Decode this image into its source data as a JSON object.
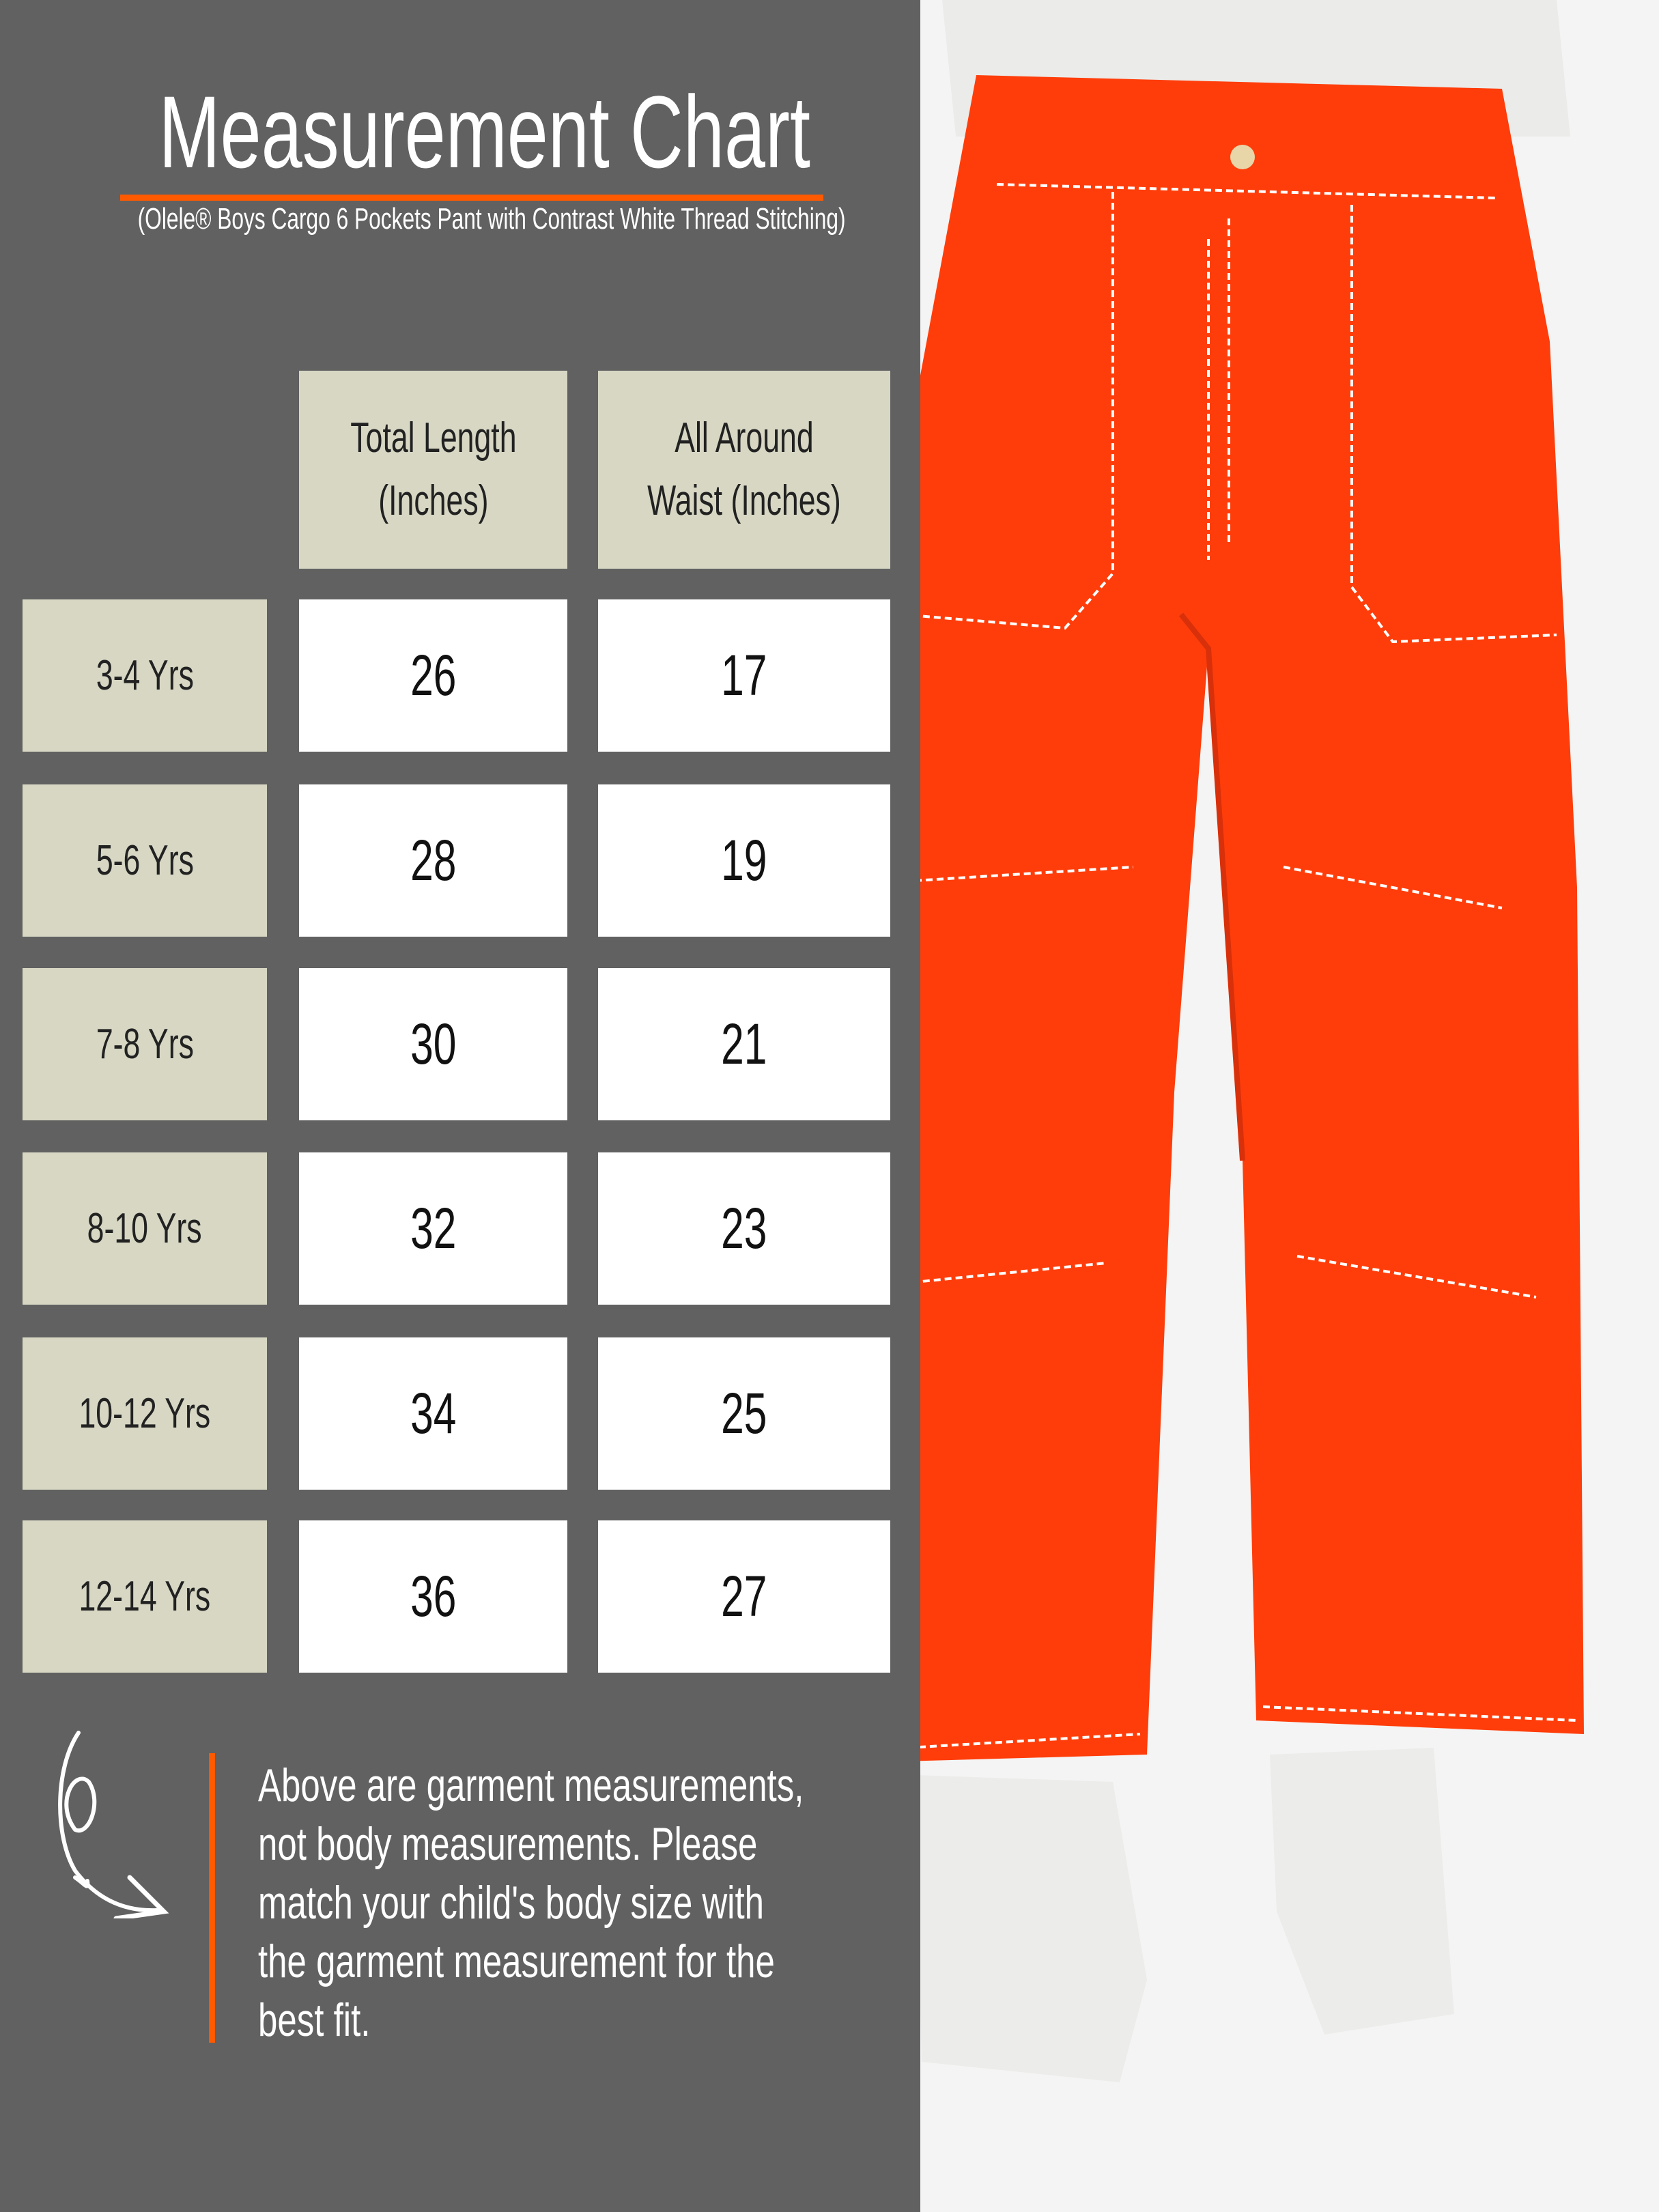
{
  "header": {
    "title": "Measurement Chart",
    "subtitle": "(Olele® Boys Cargo 6 Pockets Pant with Contrast White Thread Stitching)"
  },
  "colors": {
    "panel": "#616161",
    "accent": "#ff5a00",
    "cell_beige": "#d7d7c4",
    "pants": "#ff3d0a"
  },
  "table": {
    "columns": [
      {
        "line1": "Total Length",
        "line2": "(Inches)"
      },
      {
        "line1": "All Around",
        "line2": "Waist (Inches)"
      }
    ],
    "rows": [
      {
        "size": "3-4 Yrs",
        "length": "26",
        "waist": "17"
      },
      {
        "size": "5-6 Yrs",
        "length": "28",
        "waist": "19"
      },
      {
        "size": "7-8 Yrs",
        "length": "30",
        "waist": "21"
      },
      {
        "size": "8-10 Yrs",
        "length": "32",
        "waist": "23"
      },
      {
        "size": "10-12 Yrs",
        "length": "34",
        "waist": "25"
      },
      {
        "size": "12-14 Yrs",
        "length": "36",
        "waist": "27"
      }
    ]
  },
  "note": {
    "icon": "curly-arrow-icon",
    "text": "Above are garment measurements, not body measurements. Please match your child's body size with the garment measurement for the best fit."
  }
}
